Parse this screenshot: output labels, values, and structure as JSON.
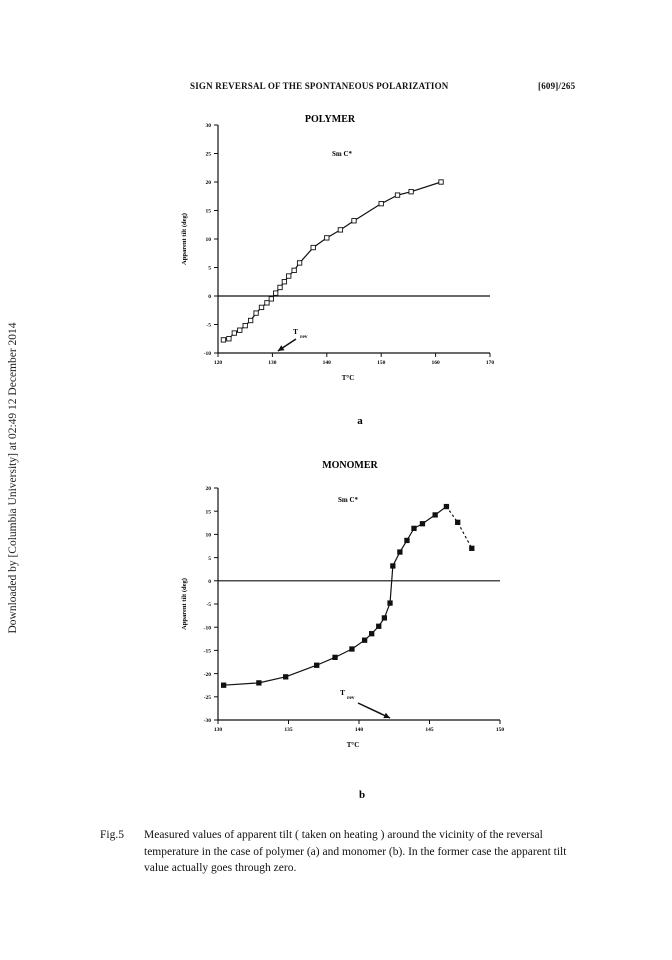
{
  "header": {
    "title": "SIGN REVERSAL OF THE SPONTANEOUS POLARIZATION",
    "page": "[609]/265"
  },
  "sidenote": "Downloaded by [Columbia University] at 02:49 12 December 2014",
  "caption": {
    "label": "Fig.5",
    "text": "Measured values of apparent tilt ( taken on heating ) around the vicinity of the reversal temperature in the case of polymer (a) and monomer (b). In the former case the apparent tilt value actually goes through zero."
  },
  "chart_data": [
    {
      "type": "line",
      "title": "POLYMER",
      "phase_label": "Sm C*",
      "panel_label": "a",
      "xlabel": "T°C",
      "ylabel": "Apparent tilt (deg)",
      "xlim": [
        120,
        170
      ],
      "ylim": [
        -10,
        30
      ],
      "xticks": [
        120,
        130,
        140,
        150,
        160,
        170
      ],
      "yticks": [
        -10,
        -5,
        0,
        5,
        10,
        15,
        20,
        25,
        30
      ],
      "annotation": {
        "text": "T",
        "subscript": "rev",
        "x": 131
      },
      "marker": "open-square",
      "series": [
        {
          "x": [
            121,
            122,
            123,
            124,
            125,
            126,
            127,
            128,
            129,
            129.8,
            130.6,
            131.4,
            132.2,
            133,
            134,
            135,
            137.5,
            140,
            142.5,
            145,
            150,
            153,
            155.5,
            161
          ],
          "y": [
            -7.7,
            -7.5,
            -6.5,
            -6.0,
            -5.2,
            -4.3,
            -3.0,
            -2.0,
            -1.2,
            -0.5,
            0.5,
            1.5,
            2.5,
            3.5,
            4.5,
            5.8,
            8.5,
            10.2,
            11.6,
            13.2,
            16.2,
            17.7,
            18.3,
            20.0
          ]
        }
      ]
    },
    {
      "type": "line",
      "title": "MONOMER",
      "phase_label": "Sm C*",
      "panel_label": "b",
      "xlabel": "T°C",
      "ylabel": "Apparent tilt (deg)",
      "xlim": [
        130,
        150
      ],
      "ylim": [
        -30,
        20
      ],
      "xticks": [
        130,
        135,
        140,
        145,
        150
      ],
      "yticks": [
        -30,
        -25,
        -20,
        -15,
        -10,
        -5,
        0,
        5,
        10,
        15,
        20
      ],
      "annotation": {
        "text": "T",
        "subscript": "rev",
        "x": 142.2
      },
      "marker": "filled-square",
      "series": [
        {
          "x": [
            130.4,
            132.9,
            134.8,
            137,
            138.3,
            139.5,
            140.4,
            140.9,
            141.4,
            141.8,
            142.2,
            142.4,
            142.9,
            143.4,
            143.9,
            144.5,
            145.4,
            146.2,
            147,
            148
          ],
          "y": [
            -22.5,
            -22,
            -20.7,
            -18.2,
            -16.5,
            -14.7,
            -12.8,
            -11.4,
            -9.8,
            -8.0,
            -4.8,
            3.2,
            6.2,
            8.7,
            11.3,
            12.3,
            14.2,
            16.0,
            12.6,
            7.0
          ]
        }
      ]
    }
  ]
}
